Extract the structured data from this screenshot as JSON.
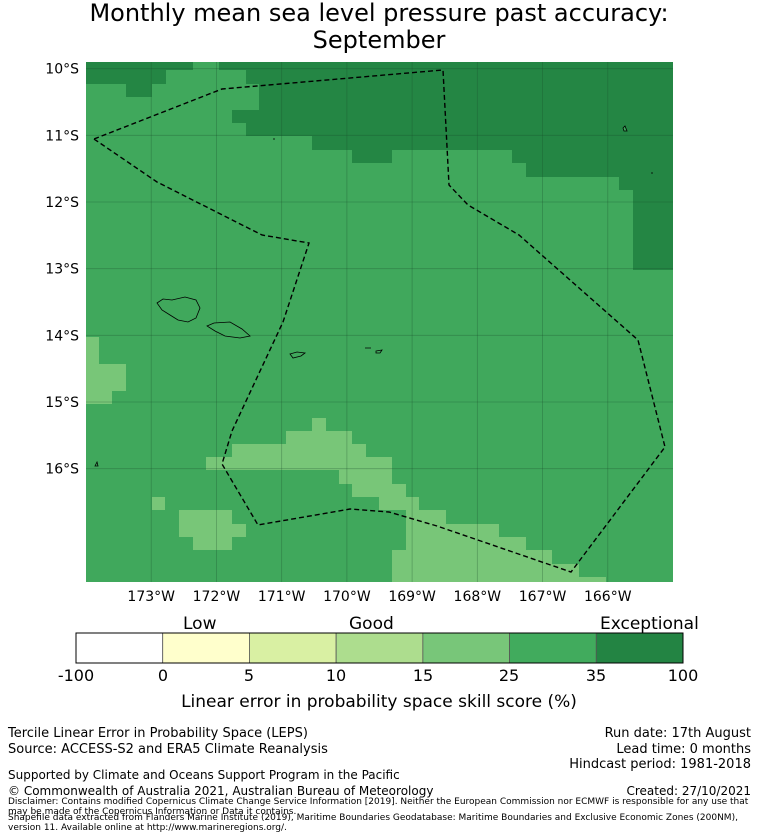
{
  "title": {
    "line1": "Monthly mean sea level pressure past accuracy:",
    "line2": "September"
  },
  "map": {
    "lon_range": [
      -174.0,
      -165.0
    ],
    "lat_range": [
      -17.7,
      -9.9
    ],
    "lat_ticks": [
      "10°S",
      "11°S",
      "12°S",
      "13°S",
      "14°S",
      "15°S",
      "16°S"
    ],
    "lon_ticks": [
      "173°W",
      "172°W",
      "171°W",
      "170°W",
      "169°W",
      "168°W",
      "167°W",
      "166°W"
    ],
    "colors": {
      "exceptional": "#248644",
      "good_35": "#40a85c",
      "good_25": "#78c678",
      "ocean": "#40a85c"
    },
    "eez_boundary": "dashed"
  },
  "colorbar": {
    "categories": [
      "Low",
      "Good",
      "Exceptional"
    ],
    "ticks": [
      "-100",
      "0",
      "5",
      "10",
      "15",
      "25",
      "35",
      "100"
    ],
    "colors": [
      "#ffffff",
      "#ffffcc",
      "#d9f0a3",
      "#addd8e",
      "#78c679",
      "#41ab5d",
      "#238443"
    ],
    "label": "Linear error in probability space skill score (%)"
  },
  "footer": {
    "method": "Tercile Linear Error in Probability Space (LEPS)",
    "source": "Source: ACCESS-S2 and ERA5 Climate Reanalysis",
    "run_date": "Run date: 17th August",
    "lead_time": "Lead time: 0 months",
    "hindcast": "Hindcast period: 1981-2018",
    "support": "Supported by Climate and Oceans Support Program in the Pacific",
    "copyright": "© Commonwealth of Australia 2021, Australian Bureau of Meteorology",
    "created": "Created: 27/10/2021",
    "disclaimer": "Disclaimer: Contains modified Copernicus Climate Change Service Information [2019]. Neither the European Commission nor ECMWF is responsible for any use that may be made of the Copernicus Information or Data it contains.",
    "shapefile": "Shapefile data extracted from Flanders Marine Institute (2019), Maritime Boundaries Geodatabase: Maritime Boundaries and Exclusive Economic Zones (200NM), version 11. Available online at http://www.marineregions.org/."
  }
}
